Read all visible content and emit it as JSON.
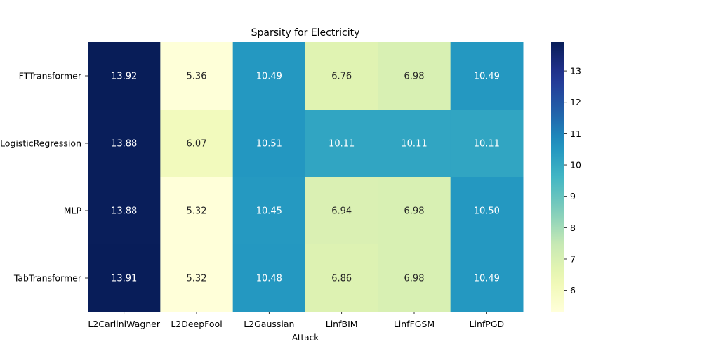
{
  "chart_data": {
    "type": "heatmap",
    "title": "Sparsity for Electricity",
    "xlabel": "Attack",
    "ylabel": "",
    "x_categories": [
      "L2CarliniWagner",
      "L2DeepFool",
      "L2Gaussian",
      "LinfBIM",
      "LinfFGSM",
      "LinfPGD"
    ],
    "y_categories": [
      "FTTransformer",
      "LogisticRegression",
      "MLP",
      "TabTransformer"
    ],
    "values": [
      [
        13.92,
        5.36,
        10.49,
        6.76,
        6.98,
        10.49
      ],
      [
        13.88,
        6.07,
        10.51,
        10.11,
        10.11,
        10.11
      ],
      [
        13.88,
        5.32,
        10.45,
        6.94,
        6.98,
        10.5
      ],
      [
        13.91,
        5.32,
        10.48,
        6.86,
        6.98,
        10.49
      ]
    ],
    "value_labels": [
      [
        "13.92",
        "5.36",
        "10.49",
        "6.76",
        "6.98",
        "10.49"
      ],
      [
        "13.88",
        "6.07",
        "10.51",
        "10.11",
        "10.11",
        "10.11"
      ],
      [
        "13.88",
        "5.32",
        "10.45",
        "6.94",
        "6.98",
        "10.50"
      ],
      [
        "13.91",
        "5.32",
        "10.48",
        "6.86",
        "6.98",
        "10.49"
      ]
    ],
    "colormap": "YlGnBu",
    "colorbar": {
      "vmin": 5.32,
      "vmax": 13.92,
      "ticks": [
        6,
        7,
        8,
        9,
        10,
        11,
        12,
        13
      ]
    },
    "grid": false,
    "legend": "colorbar-right"
  }
}
